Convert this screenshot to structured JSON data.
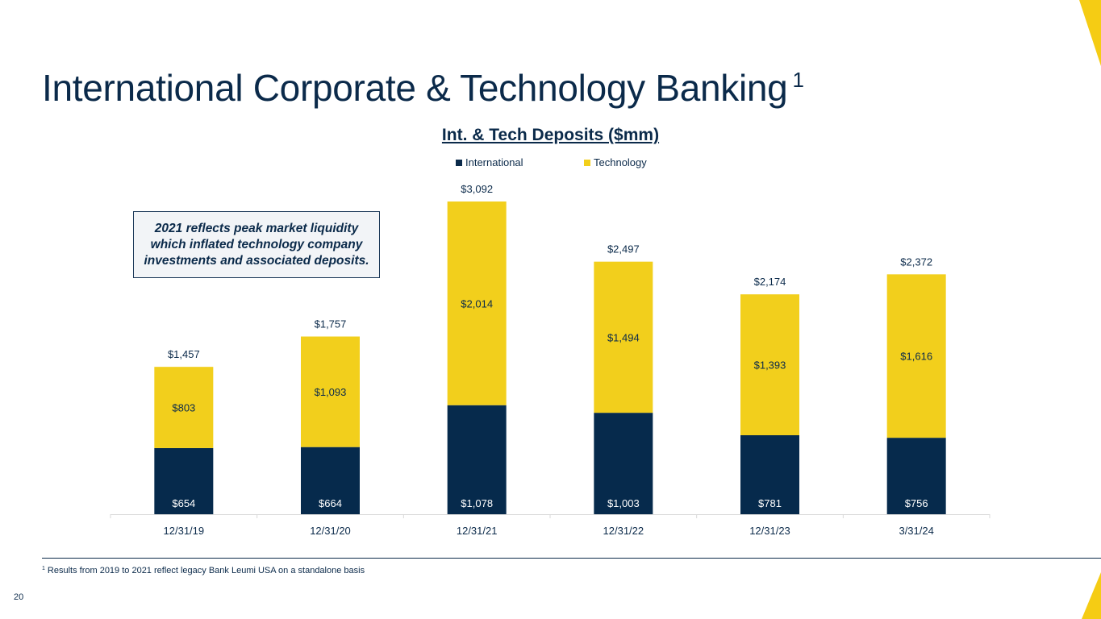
{
  "slide": {
    "title": "International Corporate & Technology Banking",
    "title_superscript": "1",
    "callout": "2021 reflects peak market liquidity which inflated technology company investments and associated deposits.",
    "footnote_marker": "1",
    "footnote_text": "Results from 2019 to 2021 reflect legacy Bank Leumi USA on a standalone basis",
    "page_number": "20"
  },
  "colors": {
    "navy": "#0b2a4a",
    "bar_navy": "#062a4c",
    "gold": "#f2cf1c",
    "accent_yellow": "#f5cc14"
  },
  "chart_data": {
    "type": "bar",
    "stacked": true,
    "title": "Int. & Tech Deposits ($mm)",
    "categories": [
      "12/31/19",
      "12/31/20",
      "12/31/21",
      "12/31/22",
      "12/31/23",
      "3/31/24"
    ],
    "series": [
      {
        "name": "International",
        "values": [
          654,
          664,
          1078,
          1003,
          781,
          756
        ],
        "labels": [
          "$654",
          "$664",
          "$1,078",
          "$1,003",
          "$781",
          "$756"
        ]
      },
      {
        "name": "Technology",
        "values": [
          803,
          1093,
          2014,
          1494,
          1393,
          1616
        ],
        "labels": [
          "$803",
          "$1,093",
          "$2,014",
          "$1,494",
          "$1,393",
          "$1,616"
        ]
      }
    ],
    "totals": [
      1457,
      1757,
      3092,
      2497,
      2174,
      2372
    ],
    "total_labels": [
      "$1,457",
      "$1,757",
      "$3,092",
      "$2,497",
      "$2,174",
      "$2,372"
    ],
    "xlabel": "",
    "ylabel": "",
    "ylim": [
      0,
      3092
    ],
    "legend": "top-center",
    "grid": false
  }
}
